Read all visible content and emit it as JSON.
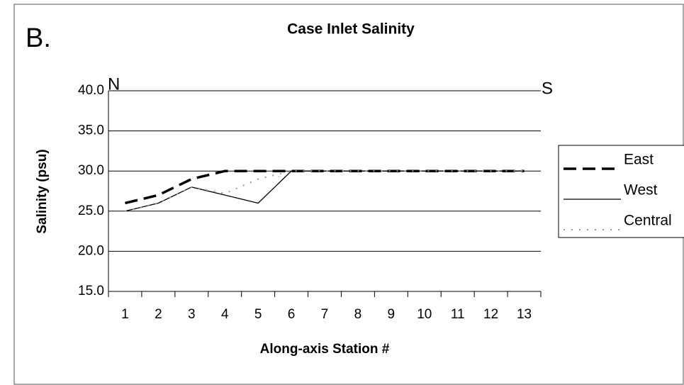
{
  "chart_data": {
    "type": "line",
    "title": "Case Inlet Salinity",
    "annotations": [
      "B.",
      "N",
      "S"
    ],
    "x_label": "Along-axis Station #",
    "y_label": "Salinity (psu)",
    "categories": [
      "1",
      "2",
      "3",
      "4",
      "5",
      "6",
      "7",
      "8",
      "9",
      "10",
      "11",
      "12",
      "13"
    ],
    "series": [
      {
        "name": "East",
        "color": "#000000",
        "style": "dashed",
        "values": [
          26,
          27,
          29,
          30,
          30,
          30,
          30,
          30,
          30,
          30,
          30,
          30,
          30
        ]
      },
      {
        "name": "West",
        "color": "#000000",
        "style": "solid",
        "values": [
          25,
          26,
          28,
          27,
          26,
          30,
          30,
          30,
          30,
          30,
          30,
          30,
          30
        ]
      },
      {
        "name": "Central",
        "color": "#999999",
        "style": "dotted",
        "values": [
          25,
          26,
          28,
          27.2,
          29,
          30,
          30,
          30,
          30,
          30,
          30,
          30,
          30
        ]
      }
    ],
    "ylim": [
      15,
      40
    ],
    "yticks": [
      {
        "value": 15,
        "label": "15.0"
      },
      {
        "value": 20,
        "label": "20.0"
      },
      {
        "value": 25,
        "label": "25.0"
      },
      {
        "value": 30,
        "label": "30.0"
      },
      {
        "value": 35,
        "label": "35.0"
      },
      {
        "value": 40,
        "label": "40.0"
      }
    ],
    "grid": true,
    "legend": "right"
  }
}
